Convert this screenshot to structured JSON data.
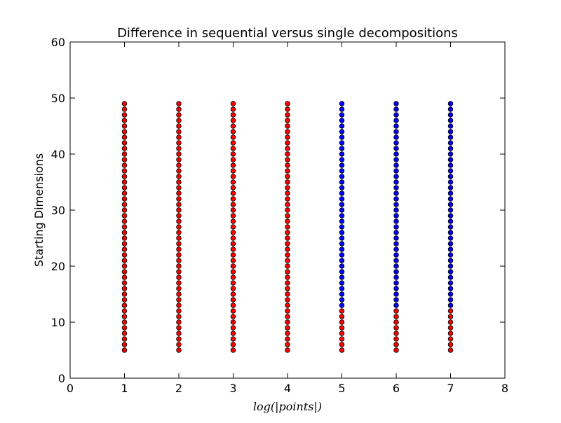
{
  "chart_data": {
    "type": "scatter",
    "title": "Difference in sequential versus single decompositions",
    "xlabel": "log(|points|)",
    "ylabel": "Starting Dimensions",
    "xlim": [
      0,
      8
    ],
    "ylim": [
      0,
      60
    ],
    "xticks": [
      "0",
      "1",
      "2",
      "3",
      "4",
      "5",
      "6",
      "7",
      "8"
    ],
    "yticks": [
      "0",
      "10",
      "20",
      "30",
      "40",
      "50",
      "60"
    ],
    "grid": false,
    "colors": {
      "red": "#ff0000",
      "blue": "#0000ff",
      "edge": "#000000"
    },
    "series": [
      {
        "x": 1,
        "y_start": 5,
        "y_end": 49,
        "red_until": 49
      },
      {
        "x": 2,
        "y_start": 5,
        "y_end": 49,
        "red_until": 49
      },
      {
        "x": 3,
        "y_start": 5,
        "y_end": 49,
        "red_until": 49
      },
      {
        "x": 4,
        "y_start": 5,
        "y_end": 49,
        "red_until": 49
      },
      {
        "x": 5,
        "y_start": 5,
        "y_end": 49,
        "red_until": 12
      },
      {
        "x": 6,
        "y_start": 5,
        "y_end": 49,
        "red_until": 12
      },
      {
        "x": 7,
        "y_start": 5,
        "y_end": 49,
        "red_until": 12
      }
    ]
  }
}
